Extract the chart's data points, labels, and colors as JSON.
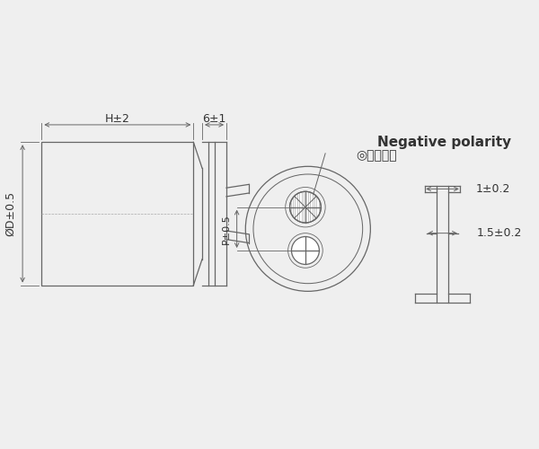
{
  "bg_color": "#efefef",
  "line_color": "#666666",
  "text_color": "#333333",
  "title": "Negative polarity",
  "subtitle": "◎负极标识",
  "dim_h2": "H±2",
  "dim_6": "6±1",
  "dim_d": "ØD±0.5",
  "dim_p": "P±0.5",
  "dim_1": "1±0.2",
  "dim_15": "1.5±0.2"
}
